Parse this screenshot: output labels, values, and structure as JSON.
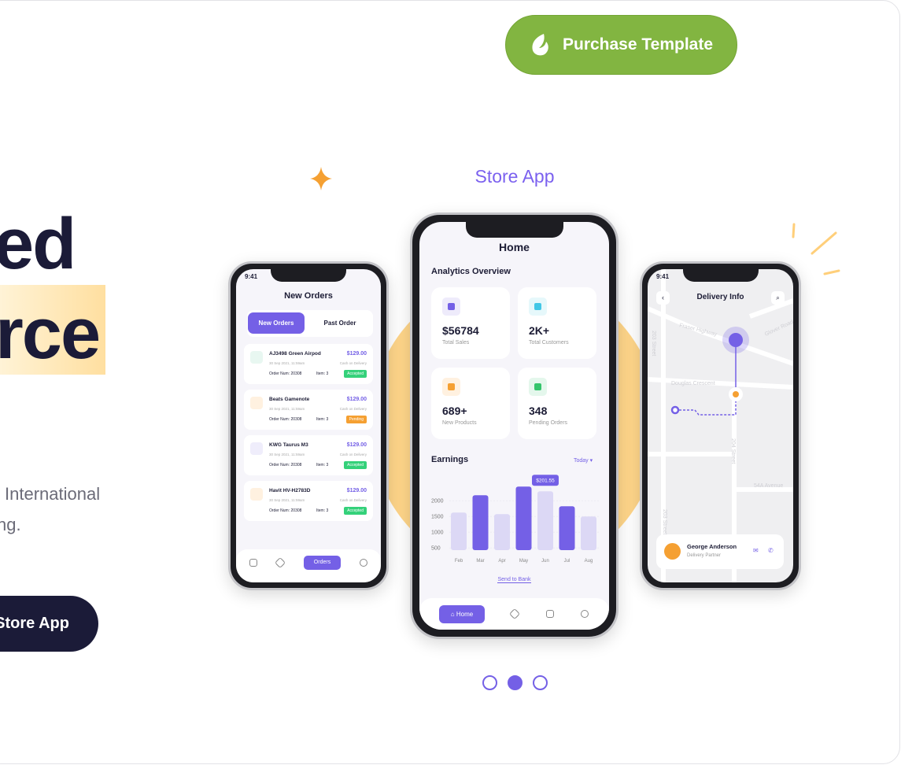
{
  "purchase_button": {
    "label": "Purchase Template",
    "icon": "envato-leaf-icon",
    "color": "#82b541"
  },
  "hero": {
    "line1": "ed",
    "line2": "rce",
    "desc1": "International",
    "desc2": "ng.",
    "cta": "Store App"
  },
  "section_title": "Store App",
  "carousel": {
    "count": 3,
    "active": 1
  },
  "orders_screen": {
    "time": "9:41",
    "title": "New Orders",
    "tabs": [
      "New Orders",
      "Past Order"
    ],
    "orders": [
      {
        "name": "AJ3498 Green Airpod",
        "price": "$129.00",
        "date": "30 Sep 2021, 11:59am",
        "payment": "Cash on Delivery",
        "order_num": "Order Num: 20308",
        "items": "Item: 3",
        "status": "Accepted",
        "icon_color": "#e8f7f1"
      },
      {
        "name": "Beats Gamenote",
        "price": "$129.00",
        "date": "30 Sep 2021, 11:59am",
        "payment": "Cash on Delivery",
        "order_num": "Order Num: 20308",
        "items": "Item: 3",
        "status": "Pending",
        "icon_color": "#fff1e0"
      },
      {
        "name": "KWG Taurus M3",
        "price": "$129.00",
        "date": "30 Sep 2021, 11:59am",
        "payment": "Cash on Delivery",
        "order_num": "Order Num: 20308",
        "items": "Item: 3",
        "status": "Accepted",
        "icon_color": "#efedfb"
      },
      {
        "name": "Havit HV-H2783D",
        "price": "$129.00",
        "date": "30 Sep 2021, 11:59am",
        "payment": "Cash on Delivery",
        "order_num": "Order Num: 20308",
        "items": "Item: 3",
        "status": "Accepted",
        "icon_color": "#fff1e0"
      }
    ],
    "nav_active": "Orders"
  },
  "home_screen": {
    "title": "Home",
    "section": "Analytics Overview",
    "stats": [
      {
        "value": "$56784",
        "label": "Total Sales",
        "icon": "wallet-icon",
        "color": "#7460e6",
        "bg": "#eeebfb"
      },
      {
        "value": "2K+",
        "label": "Total Customers",
        "icon": "users-icon",
        "color": "#43c7e6",
        "bg": "#e6f8fb"
      },
      {
        "value": "689+",
        "label": "New Products",
        "icon": "box-icon",
        "color": "#f5a032",
        "bg": "#fff1e0"
      },
      {
        "value": "348",
        "label": "Pending Orders",
        "icon": "pending-icon",
        "color": "#34c56b",
        "bg": "#e4f7ec"
      }
    ],
    "earnings_title": "Earnings",
    "period": "Today",
    "tooltip": "$201.55",
    "send_link": "Send to Bank",
    "nav_active": "Home"
  },
  "chart_data": {
    "type": "bar",
    "categories": [
      "Feb",
      "Mar",
      "Apr",
      "May",
      "Jun",
      "Jul",
      "Aug"
    ],
    "values": [
      1625,
      2175,
      1575,
      2450,
      2300,
      1825,
      1500
    ],
    "highlighted": [
      "Mar",
      "May",
      "Jul"
    ],
    "selected": "Jun",
    "yticks": [
      500,
      1000,
      1500,
      2000
    ],
    "ylim": [
      430,
      2600
    ],
    "colors": {
      "dark": "#7460e6",
      "light": "#dcd8f5"
    }
  },
  "delivery_screen": {
    "time": "9:41",
    "title": "Delivery Info",
    "streets": [
      "Fraser Highway",
      "Glover Road",
      "203 Street",
      "Douglas Crescent",
      "204 Street",
      "54A Avenue",
      "203 Street"
    ],
    "partner": {
      "name": "George Anderson",
      "role": "Delivery Partner"
    }
  }
}
